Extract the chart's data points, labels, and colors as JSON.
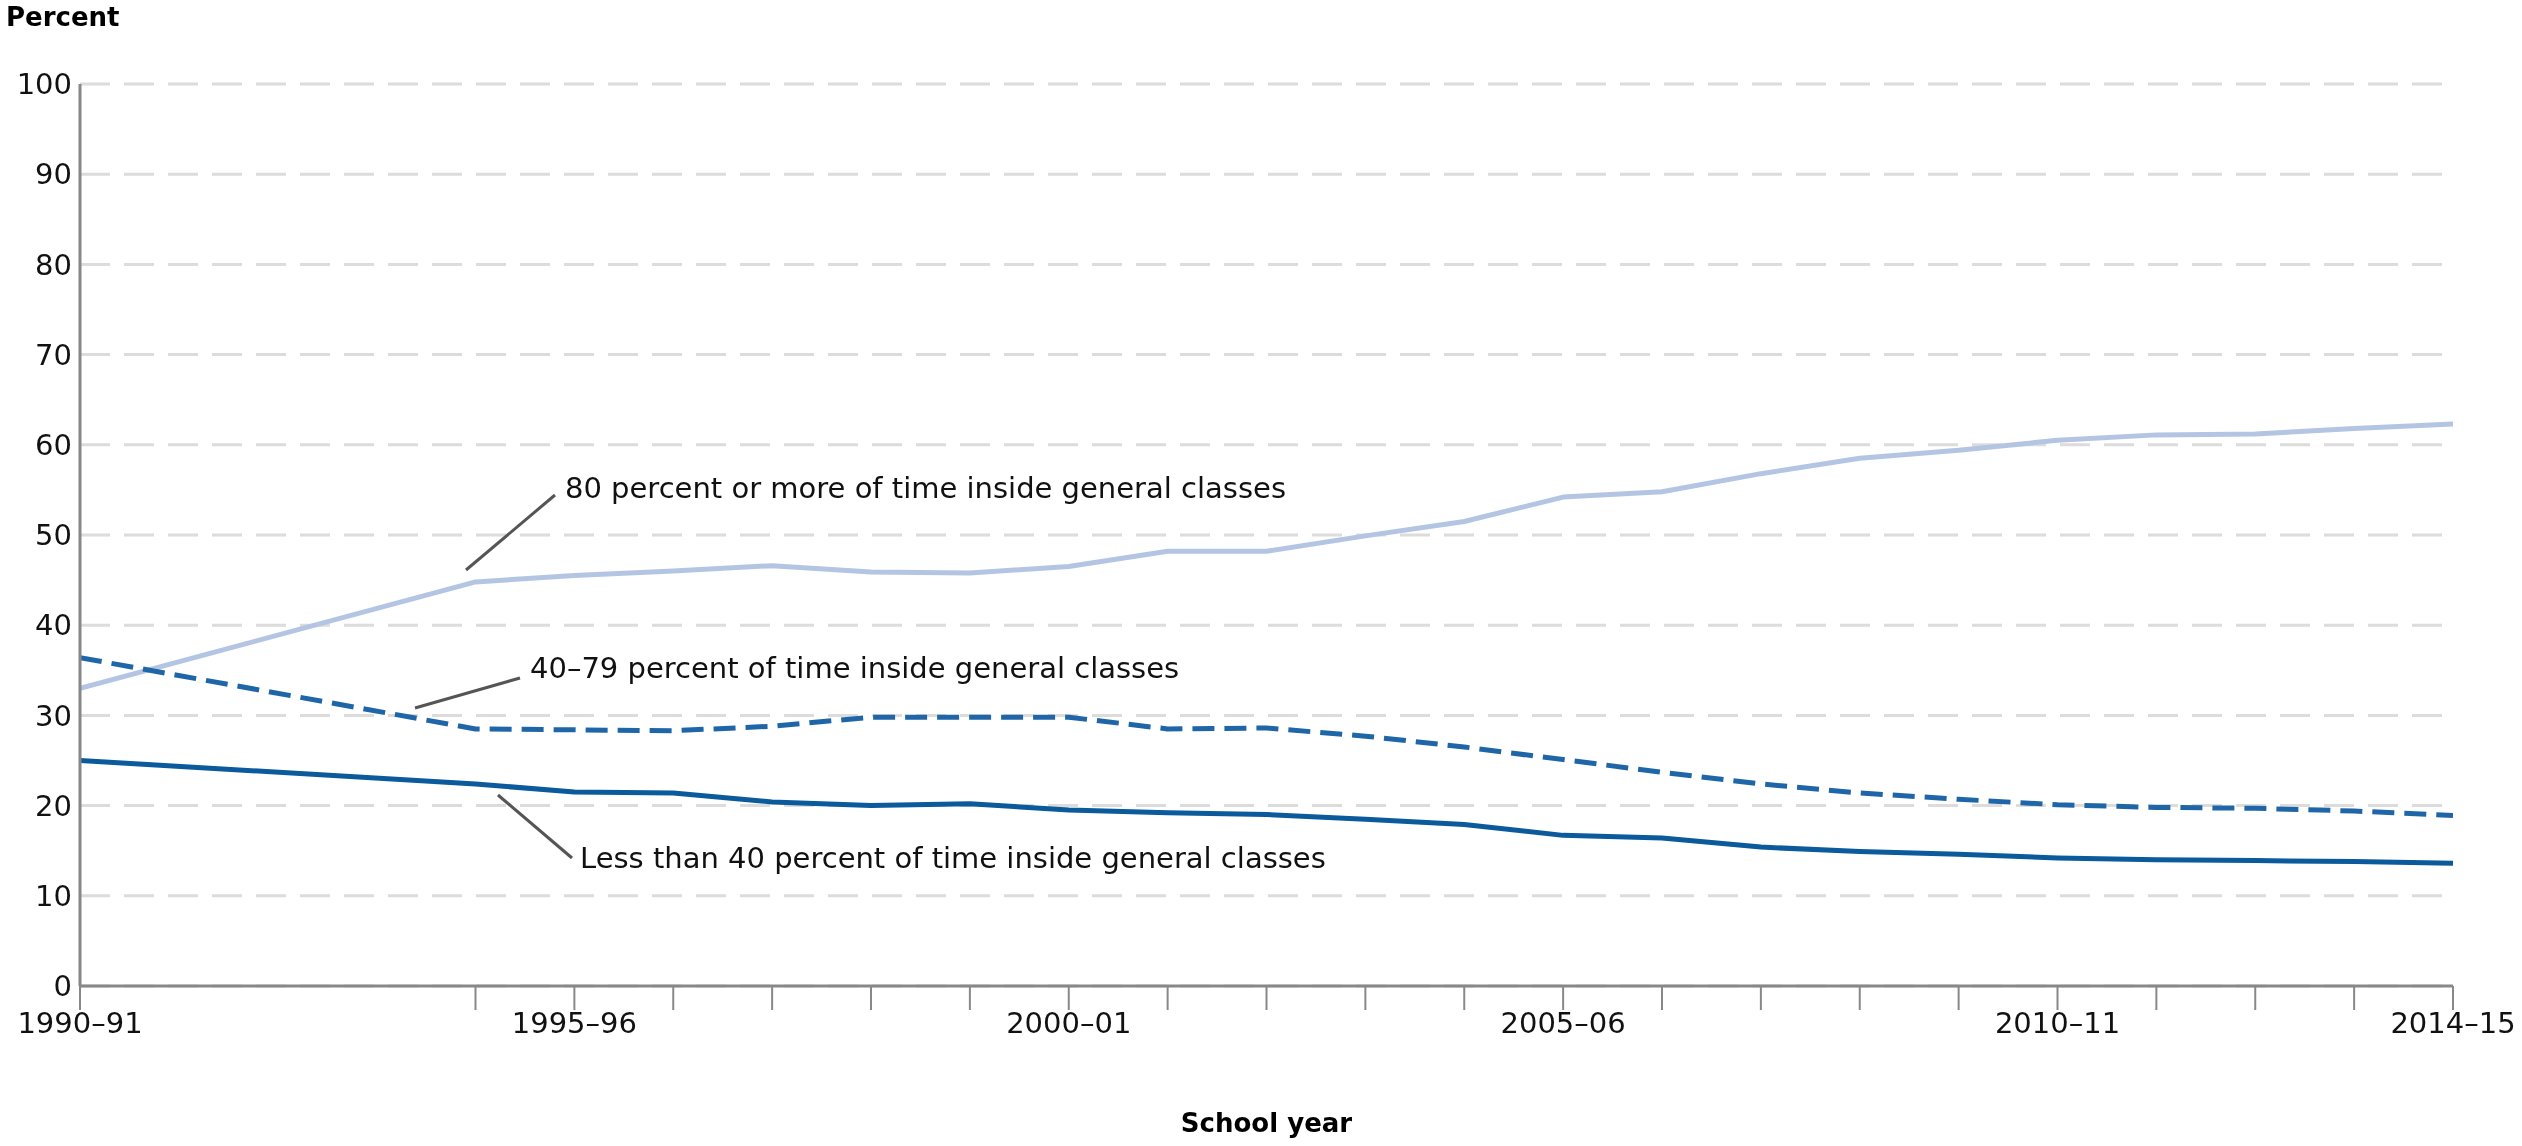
{
  "chart_data": {
    "type": "line",
    "xlabel": "School year",
    "ylabel": "Percent",
    "categories": [
      "1990–91",
      null,
      null,
      null,
      null,
      "1995–96",
      null,
      null,
      null,
      null,
      "2000–01",
      null,
      null,
      null,
      null,
      "2005–06",
      null,
      null,
      null,
      null,
      "2010–11",
      null,
      null,
      null,
      "2014–15"
    ],
    "series": [
      {
        "name": "80 percent or more of time inside general classes",
        "color": "#b4c5e4",
        "line_style": "solid",
        "values": [
          33,
          null,
          null,
          null,
          44.8,
          45.5,
          46,
          46.6,
          45.9,
          45.8,
          46.5,
          48.2,
          48.2,
          49.9,
          51.5,
          54.2,
          54.8,
          56.8,
          58.5,
          59.4,
          60.5,
          61.1,
          61.2,
          61.8,
          62.3
        ]
      },
      {
        "name": "40–79 percent of time inside general classes",
        "color": "#1f66a8",
        "line_style": "dashed",
        "values": [
          36.4,
          null,
          null,
          null,
          28.5,
          28.4,
          28.3,
          28.8,
          29.8,
          29.8,
          29.8,
          28.5,
          28.6,
          27.7,
          26.5,
          25.1,
          23.7,
          22.4,
          21.4,
          20.7,
          20.1,
          19.8,
          19.7,
          19.4,
          18.9
        ]
      },
      {
        "name": "Less than 40 percent of time inside general classes",
        "color": "#0a5a9c",
        "line_style": "solid",
        "values": [
          25,
          null,
          null,
          null,
          22.4,
          21.5,
          21.4,
          20.4,
          20,
          20.2,
          19.5,
          19.2,
          19,
          18.5,
          17.9,
          16.7,
          16.4,
          15.4,
          14.9,
          14.6,
          14.2,
          14,
          13.9,
          13.8,
          13.6
        ]
      }
    ],
    "ylim": [
      0,
      100
    ],
    "yticks": [
      0,
      10,
      20,
      30,
      40,
      50,
      60,
      70,
      80,
      90,
      100
    ],
    "grid": "y",
    "legend": false,
    "marker": "none"
  }
}
